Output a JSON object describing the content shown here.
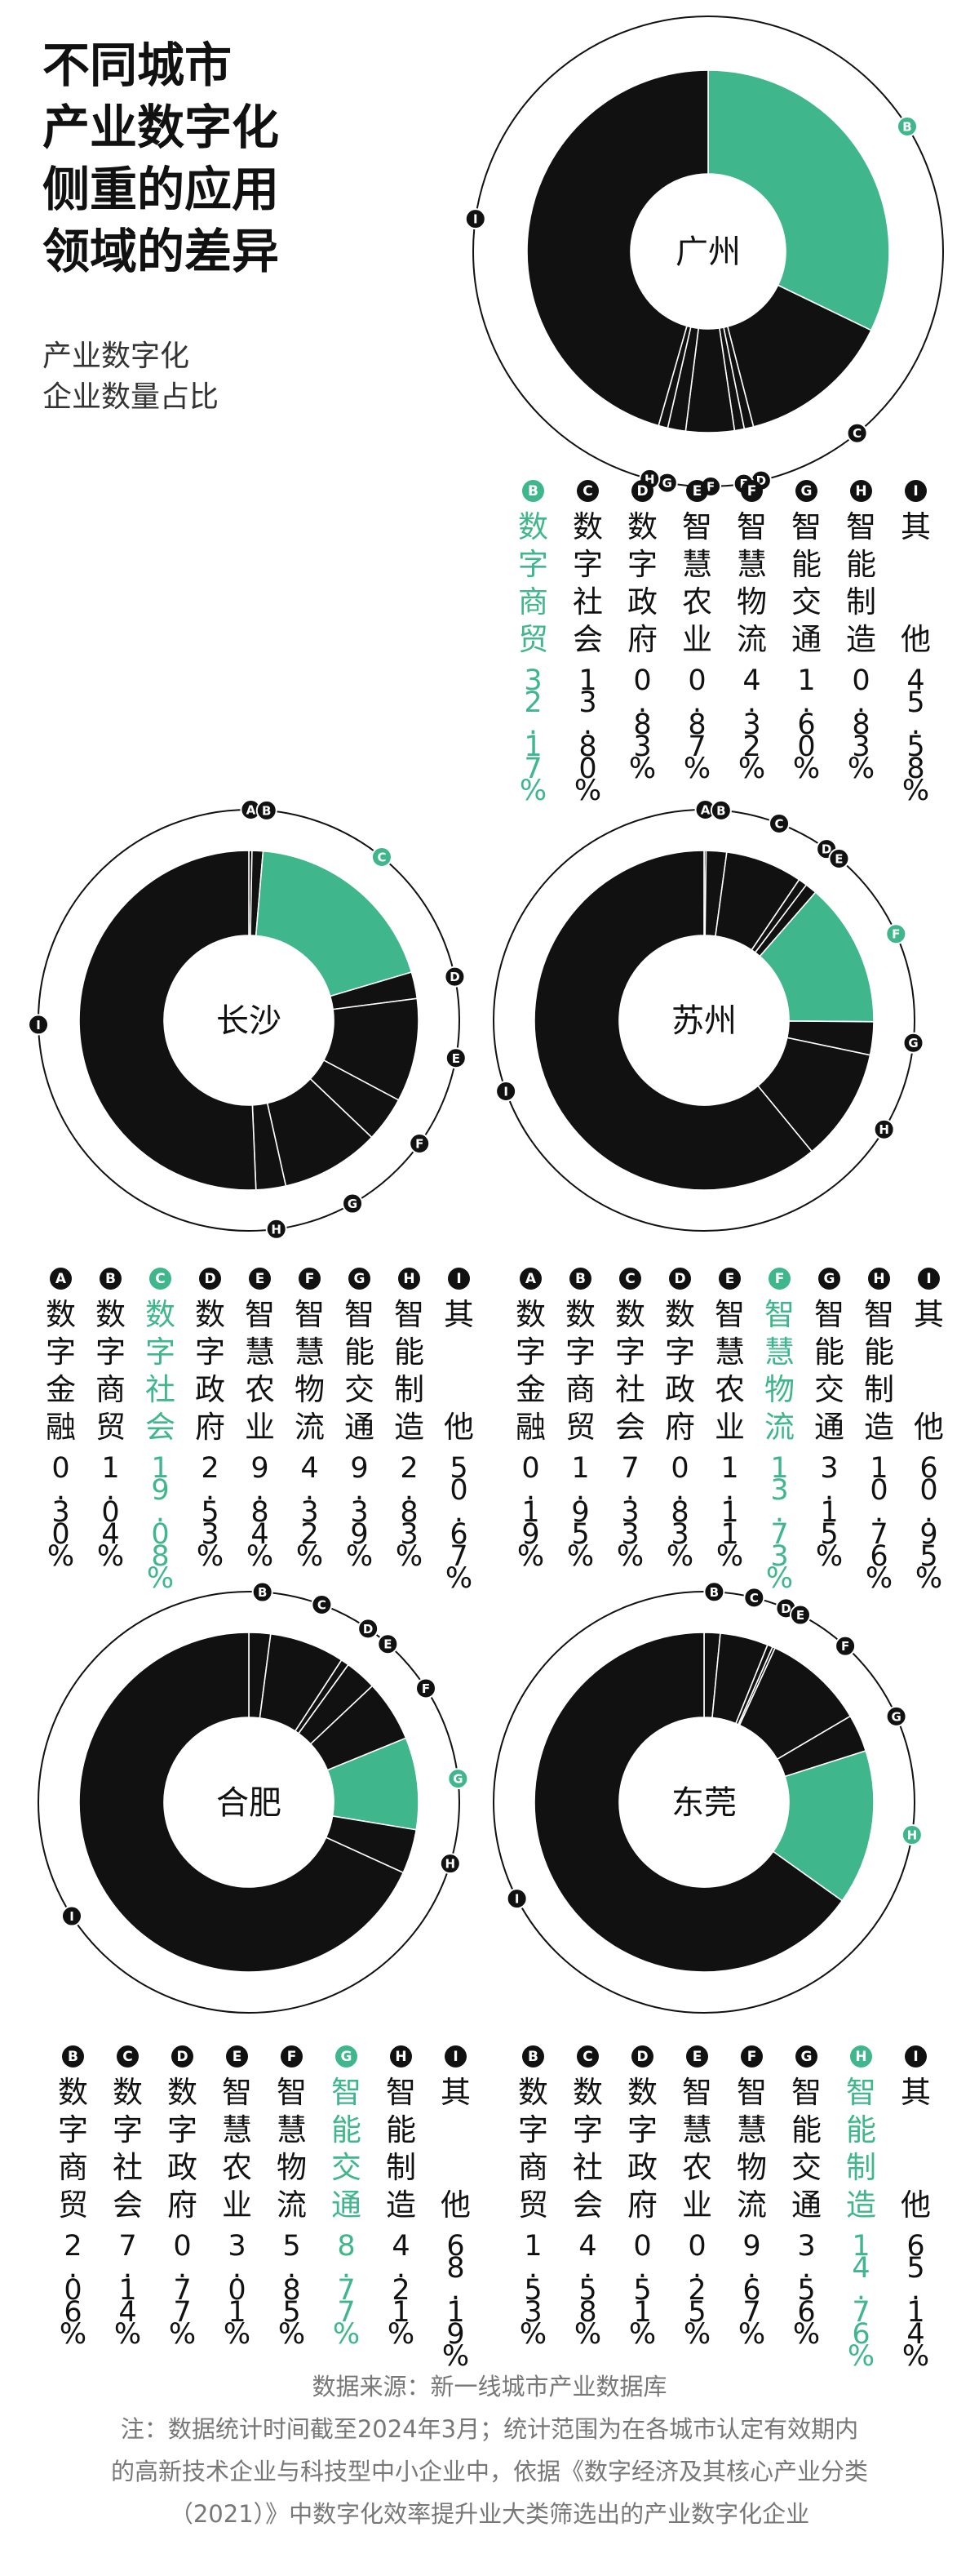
{
  "title_lines": [
    "不同城市",
    "产业数字化",
    "侧重的应用",
    "领域的差异"
  ],
  "subtitle_lines": [
    "产业数字化",
    "企业数量占比"
  ],
  "colors": {
    "highlight": "#3fb68b",
    "segment": "#111111",
    "ring": "#111111",
    "background": "#ffffff"
  },
  "chart_data": [
    {
      "type": "pie",
      "city": "广州",
      "highlight": "B",
      "slices": [
        {
          "key": "B",
          "name": "数字商贸",
          "value": 32.17,
          "label": "32.17%"
        },
        {
          "key": "C",
          "name": "数字社会",
          "value": 13.8,
          "label": "13.80%"
        },
        {
          "key": "D",
          "name": "数字政府",
          "value": 0.83,
          "label": "0.83%"
        },
        {
          "key": "E",
          "name": "智慧农业",
          "value": 0.87,
          "label": "0.87%"
        },
        {
          "key": "F",
          "name": "智慧物流",
          "value": 4.32,
          "label": "4.32%"
        },
        {
          "key": "G",
          "name": "智能交通",
          "value": 1.6,
          "label": "1.60%"
        },
        {
          "key": "H",
          "name": "智能制造",
          "value": 0.83,
          "label": "0.83%"
        },
        {
          "key": "I",
          "name": "其他",
          "value": 45.58,
          "label": "45.58%"
        }
      ]
    },
    {
      "type": "pie",
      "city": "长沙",
      "highlight": "C",
      "slices": [
        {
          "key": "A",
          "name": "数字金融",
          "value": 0.3,
          "label": "0.30%"
        },
        {
          "key": "B",
          "name": "数字商贸",
          "value": 1.04,
          "label": "1.04%"
        },
        {
          "key": "C",
          "name": "数字社会",
          "value": 19.08,
          "label": "19.08%"
        },
        {
          "key": "D",
          "name": "数字政府",
          "value": 2.53,
          "label": "2.53%"
        },
        {
          "key": "E",
          "name": "智慧农业",
          "value": 9.84,
          "label": "9.84%"
        },
        {
          "key": "F",
          "name": "智慧物流",
          "value": 4.32,
          "label": "4.32%"
        },
        {
          "key": "G",
          "name": "智能交通",
          "value": 9.39,
          "label": "9.39%"
        },
        {
          "key": "H",
          "name": "智能制造",
          "value": 2.83,
          "label": "2.83%"
        },
        {
          "key": "I",
          "name": "其他",
          "value": 50.67,
          "label": "50.67%"
        }
      ]
    },
    {
      "type": "pie",
      "city": "苏州",
      "highlight": "F",
      "slices": [
        {
          "key": "A",
          "name": "数字金融",
          "value": 0.19,
          "label": "0.19%"
        },
        {
          "key": "B",
          "name": "数字商贸",
          "value": 1.95,
          "label": "1.95%"
        },
        {
          "key": "C",
          "name": "数字社会",
          "value": 7.33,
          "label": "7.33%"
        },
        {
          "key": "D",
          "name": "数字政府",
          "value": 0.83,
          "label": "0.83%"
        },
        {
          "key": "E",
          "name": "智慧农业",
          "value": 1.11,
          "label": "1.11%"
        },
        {
          "key": "F",
          "name": "智慧物流",
          "value": 13.73,
          "label": "13.73%"
        },
        {
          "key": "G",
          "name": "智能交通",
          "value": 3.15,
          "label": "3.15%"
        },
        {
          "key": "H",
          "name": "智能制造",
          "value": 10.76,
          "label": "10.76%"
        },
        {
          "key": "I",
          "name": "其他",
          "value": 60.95,
          "label": "60.95%"
        }
      ]
    },
    {
      "type": "pie",
      "city": "合肥",
      "highlight": "G",
      "slices": [
        {
          "key": "B",
          "name": "数字商贸",
          "value": 2.06,
          "label": "2.06%"
        },
        {
          "key": "C",
          "name": "数字社会",
          "value": 7.14,
          "label": "7.14%"
        },
        {
          "key": "D",
          "name": "数字政府",
          "value": 0.77,
          "label": "0.77%"
        },
        {
          "key": "E",
          "name": "智慧农业",
          "value": 3.01,
          "label": "3.01%"
        },
        {
          "key": "F",
          "name": "智慧物流",
          "value": 5.85,
          "label": "5.85%"
        },
        {
          "key": "G",
          "name": "智能交通",
          "value": 8.77,
          "label": "8.77%"
        },
        {
          "key": "H",
          "name": "智能制造",
          "value": 4.21,
          "label": "4.21%"
        },
        {
          "key": "I",
          "name": "其他",
          "value": 68.19,
          "label": "68.19%"
        }
      ]
    },
    {
      "type": "pie",
      "city": "东莞",
      "highlight": "H",
      "slices": [
        {
          "key": "B",
          "name": "数字商贸",
          "value": 1.53,
          "label": "1.53%"
        },
        {
          "key": "C",
          "name": "数字社会",
          "value": 4.58,
          "label": "4.58%"
        },
        {
          "key": "D",
          "name": "数字政府",
          "value": 0.51,
          "label": "0.51%"
        },
        {
          "key": "E",
          "name": "智慧农业",
          "value": 0.25,
          "label": "0.25%"
        },
        {
          "key": "F",
          "name": "智慧物流",
          "value": 9.67,
          "label": "9.67%"
        },
        {
          "key": "G",
          "name": "智能交通",
          "value": 3.56,
          "label": "3.56%"
        },
        {
          "key": "H",
          "name": "智能制造",
          "value": 14.76,
          "label": "14.76%"
        },
        {
          "key": "I",
          "name": "其他",
          "value": 65.14,
          "label": "65.14%"
        }
      ]
    }
  ],
  "footer_lines": [
    "数据来源：新一线城市产业数据库",
    "注：数据统计时间截至2024年3月；统计范围为在各城市认定有效期内",
    "的高新技术企业与科技型中小企业中，依据《数字经济及其核心产业分类",
    "（2021）》中数字化效率提升业大类筛选出的产业数字化企业"
  ]
}
